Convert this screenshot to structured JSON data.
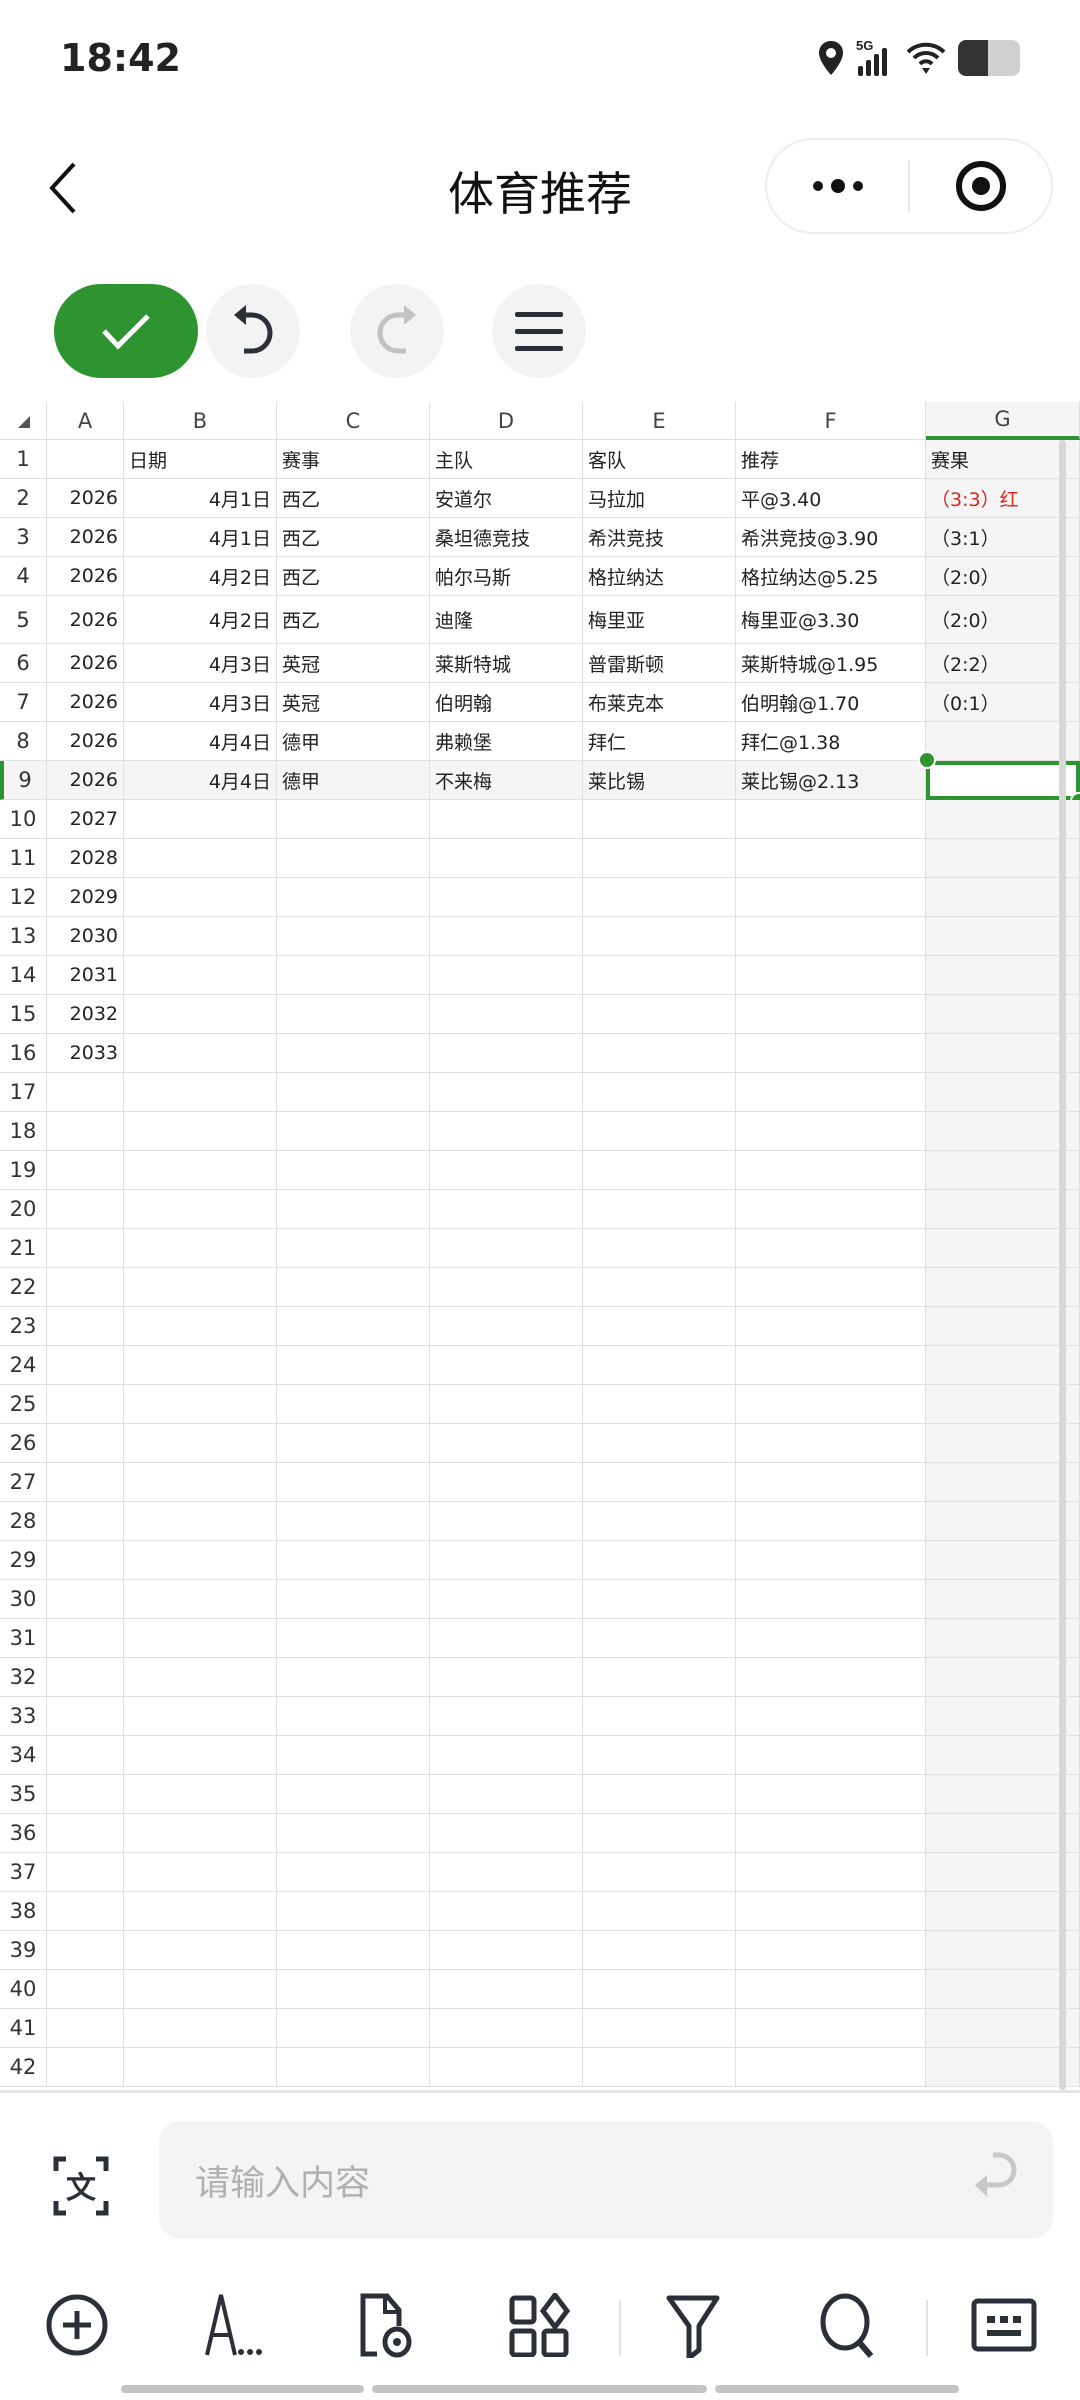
{
  "status_bar": {
    "time": "18:42",
    "network": "5G",
    "icons": [
      "location-icon",
      "signal-icon",
      "wifi-icon",
      "battery-icon"
    ]
  },
  "nav": {
    "title": "体育推荐",
    "back_icon": "chevron-left-icon",
    "more_icon": "more-dots-icon",
    "target_icon": "record-icon"
  },
  "toolbar": {
    "items": [
      "check-icon",
      "undo-icon",
      "redo-icon",
      "menu-icon"
    ],
    "accent": "#2d9430"
  },
  "sheet": {
    "columns": [
      "A",
      "B",
      "C",
      "D",
      "E",
      "F",
      "G"
    ],
    "row_count": 42,
    "selected_cell": "G9",
    "rows": [
      [
        "",
        "日期",
        "赛事",
        "主队",
        "客队",
        "推荐",
        "赛果"
      ],
      [
        "2026",
        "4月1日",
        "西乙",
        "安道尔",
        "马拉加",
        "平@3.40",
        "（3:3）红"
      ],
      [
        "2026",
        "4月1日",
        "西乙",
        "桑坦德竞技",
        "希洪竞技",
        "希洪竞技@3.90",
        "（3:1）"
      ],
      [
        "2026",
        "4月2日",
        "西乙",
        "帕尔马斯",
        "格拉纳达",
        "格拉纳达@5.25",
        "（2:0）"
      ],
      [
        "2026",
        "4月2日",
        "西乙",
        "迪隆",
        "梅里亚",
        "梅里亚@3.30",
        "（2:0）"
      ],
      [
        "2026",
        "4月3日",
        "英冠",
        "莱斯特城",
        "普雷斯顿",
        "莱斯特城@1.95",
        "（2:2）"
      ],
      [
        "2026",
        "4月3日",
        "英冠",
        "伯明翰",
        "布莱克本",
        "伯明翰@1.70",
        "（0:1）"
      ],
      [
        "2026",
        "4月4日",
        "德甲",
        "弗赖堡",
        "拜仁",
        "拜仁@1.38",
        ""
      ],
      [
        "2026",
        "4月4日",
        "德甲",
        "不来梅",
        "莱比锡",
        "莱比锡@2.13",
        ""
      ],
      [
        "2027",
        "",
        "",
        "",
        "",
        "",
        ""
      ],
      [
        "2028",
        "",
        "",
        "",
        "",
        "",
        ""
      ],
      [
        "2029",
        "",
        "",
        "",
        "",
        "",
        ""
      ],
      [
        "2030",
        "",
        "",
        "",
        "",
        "",
        ""
      ],
      [
        "2031",
        "",
        "",
        "",
        "",
        "",
        ""
      ],
      [
        "2032",
        "",
        "",
        "",
        "",
        "",
        ""
      ],
      [
        "2033",
        "",
        "",
        "",
        "",
        "",
        ""
      ]
    ],
    "red_color": "#d9261c"
  },
  "input": {
    "placeholder": "请输入内容",
    "left_icon": "text-scan-icon",
    "right_icon": "enter-icon"
  },
  "bottom_bar": {
    "items": [
      "add-circle-icon",
      "text-format-icon",
      "file-view-icon",
      "apps-icon",
      "filter-icon",
      "search-icon",
      "keyboard-icon"
    ]
  }
}
